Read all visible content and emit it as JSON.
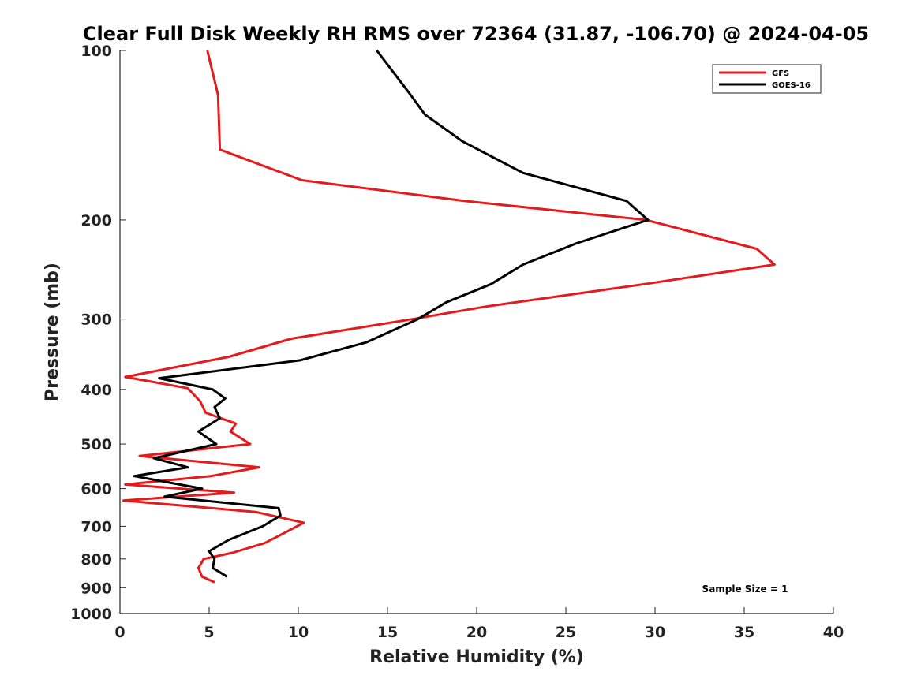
{
  "chart_data": {
    "type": "line",
    "title": "Clear Full Disk Weekly RH RMS over 72364 (31.87, -106.70) @ 2024-04-05",
    "xlabel": "Relative Humidity (%)",
    "ylabel": "Pressure (mb)",
    "xlim": [
      0,
      40
    ],
    "ylim": [
      1000,
      100
    ],
    "y_scale": "log",
    "x_ticks": [
      0,
      5,
      10,
      15,
      20,
      25,
      30,
      35,
      40
    ],
    "x_tick_labels": [
      "0",
      "5",
      "10",
      "15",
      "20",
      "25",
      "30",
      "35",
      "40"
    ],
    "y_ticks": [
      100,
      200,
      300,
      400,
      500,
      600,
      700,
      800,
      900,
      1000
    ],
    "y_tick_labels": [
      "100",
      "200",
      "300",
      "400",
      "500",
      "600",
      "700",
      "800",
      "900",
      "1000"
    ],
    "grid": false,
    "legend_position": "top-right",
    "annotation": "Sample Size = 1",
    "series": [
      {
        "name": "GFS",
        "color": "#e41a1c",
        "points": [
          [
            4.9,
            100
          ],
          [
            5.5,
            120
          ],
          [
            5.6,
            150
          ],
          [
            10.2,
            170
          ],
          [
            19.3,
            185
          ],
          [
            29.5,
            200
          ],
          [
            35.7,
            225
          ],
          [
            36.7,
            240
          ],
          [
            29.4,
            260
          ],
          [
            20.5,
            285
          ],
          [
            16.4,
            300
          ],
          [
            9.6,
            325
          ],
          [
            6.1,
            350
          ],
          [
            0.3,
            380
          ],
          [
            3.8,
            398
          ],
          [
            4.5,
            420
          ],
          [
            4.8,
            440
          ],
          [
            6.5,
            460
          ],
          [
            6.2,
            475
          ],
          [
            7.3,
            500
          ],
          [
            1.1,
            525
          ],
          [
            7.8,
            550
          ],
          [
            5.1,
            570
          ],
          [
            0.3,
            590
          ],
          [
            6.4,
            610
          ],
          [
            0.2,
            630
          ],
          [
            7.6,
            660
          ],
          [
            10.3,
            690
          ],
          [
            9.2,
            720
          ],
          [
            8.1,
            750
          ],
          [
            6.3,
            780
          ],
          [
            4.7,
            800
          ],
          [
            4.4,
            830
          ],
          [
            4.6,
            860
          ],
          [
            5.3,
            880
          ]
        ]
      },
      {
        "name": "GOES-16",
        "color": "#000000",
        "points": [
          [
            14.4,
            100
          ],
          [
            15.4,
            110
          ],
          [
            16.3,
            120
          ],
          [
            17.1,
            130
          ],
          [
            19.2,
            145
          ],
          [
            22.6,
            165
          ],
          [
            28.4,
            185
          ],
          [
            29.6,
            200
          ],
          [
            25.6,
            220
          ],
          [
            22.6,
            240
          ],
          [
            20.8,
            260
          ],
          [
            18.3,
            280
          ],
          [
            16.7,
            300
          ],
          [
            13.8,
            330
          ],
          [
            10.1,
            355
          ],
          [
            2.2,
            382
          ],
          [
            5.2,
            400
          ],
          [
            5.9,
            415
          ],
          [
            5.3,
            430
          ],
          [
            5.6,
            450
          ],
          [
            4.4,
            475
          ],
          [
            5.4,
            500
          ],
          [
            1.9,
            530
          ],
          [
            3.8,
            550
          ],
          [
            0.8,
            570
          ],
          [
            4.6,
            600
          ],
          [
            2.5,
            620
          ],
          [
            8.9,
            650
          ],
          [
            9.0,
            670
          ],
          [
            8.0,
            700
          ],
          [
            6.1,
            740
          ],
          [
            5.0,
            775
          ],
          [
            5.3,
            800
          ],
          [
            5.2,
            830
          ],
          [
            6.0,
            860
          ]
        ]
      }
    ]
  }
}
